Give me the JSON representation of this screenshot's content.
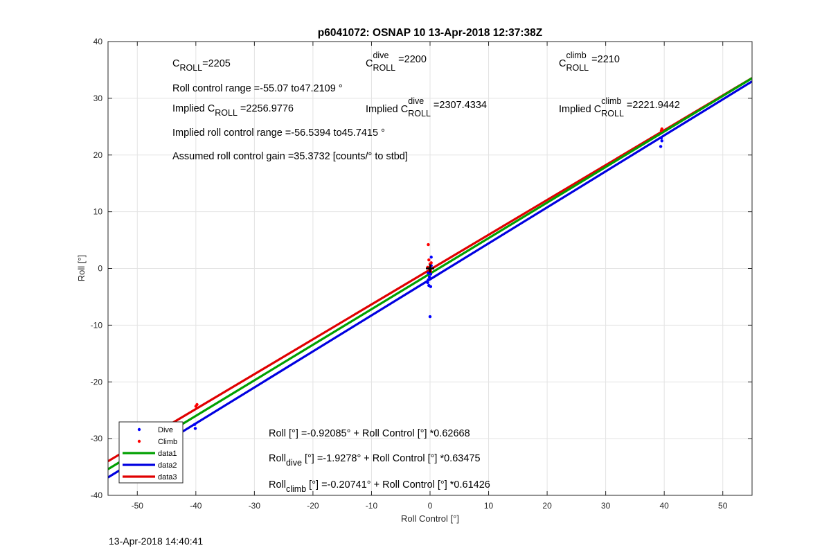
{
  "chart_data": {
    "type": "scatter",
    "title": "p6041072: OSNAP 10 13-Apr-2018 12:37:38Z",
    "xlabel": "Roll Control [°]",
    "ylabel": "Roll [°]",
    "xlim": [
      -55,
      55
    ],
    "ylim": [
      -40,
      40
    ],
    "xticks": [
      "-50",
      "-40",
      "-30",
      "-20",
      "-10",
      "0",
      "10",
      "20",
      "30",
      "40",
      "50"
    ],
    "yticks": [
      "-40",
      "-30",
      "-20",
      "-10",
      "0",
      "10",
      "20",
      "30",
      "40"
    ],
    "grid": true,
    "legend_location": "bottom-left",
    "series": [
      {
        "name": "Dive",
        "style": "points",
        "color": "#0000ff",
        "x": [
          -50.5,
          -40.2,
          -40.1,
          -0.3,
          -0.4,
          -0.2,
          -0.1,
          0.1,
          0.2,
          -0.3,
          0.0,
          0.1,
          0.2,
          39.5,
          39.4,
          39.6
        ],
        "y": [
          -28.0,
          -27.5,
          -28.2,
          -2.0,
          -2.5,
          -3.0,
          -1.5,
          -1.0,
          2.0,
          -0.8,
          -8.5,
          -3.2,
          0.5,
          23.0,
          21.5,
          22.5
        ]
      },
      {
        "name": "Climb",
        "style": "points",
        "color": "#ff0000",
        "x": [
          -40.0,
          -39.8,
          -0.3,
          -0.2,
          0.0,
          0.1,
          -0.4,
          0.2,
          39.6,
          39.5
        ],
        "y": [
          -24.3,
          -24.0,
          4.2,
          1.5,
          0.8,
          -0.5,
          0.2,
          1.0,
          24.6,
          24.3
        ]
      },
      {
        "name": "data1",
        "style": "line",
        "color": "#00a000",
        "x": [
          -55,
          55
        ],
        "y": [
          -35.388,
          33.547
        ]
      },
      {
        "name": "data2",
        "style": "line",
        "color": "#0000e0",
        "x": [
          -55,
          55
        ],
        "y": [
          -36.839,
          32.983
        ]
      },
      {
        "name": "data3",
        "style": "line",
        "color": "#e00000",
        "x": [
          -55,
          55
        ],
        "y": [
          -33.992,
          33.577
        ]
      }
    ],
    "marker": {
      "x": [
        0
      ],
      "y": [
        0
      ]
    },
    "annotations": [
      {
        "id": "croll",
        "parts": [
          {
            "t": "C"
          },
          {
            "t": "ROLL",
            "sub": true
          },
          {
            "t": "=2205"
          }
        ]
      },
      {
        "id": "croll_dive",
        "parts": [
          {
            "t": "C"
          },
          {
            "t": "ROLL",
            "sub": true
          },
          {
            "t": "dive",
            "sup": true
          },
          {
            "t": " =2200"
          }
        ]
      },
      {
        "id": "croll_climb",
        "parts": [
          {
            "t": "C"
          },
          {
            "t": "ROLL",
            "sub": true
          },
          {
            "t": "climb",
            "sup": true
          },
          {
            "t": " =2210"
          }
        ]
      },
      {
        "id": "range",
        "parts": [
          {
            "t": "Roll control range =-55.07 to47.2109 °"
          }
        ]
      },
      {
        "id": "implied",
        "parts": [
          {
            "t": "Implied C"
          },
          {
            "t": "ROLL",
            "sub": true
          },
          {
            "t": " =2256.9776"
          }
        ]
      },
      {
        "id": "implied_dive",
        "parts": [
          {
            "t": "Implied C"
          },
          {
            "t": "ROLL",
            "sub": true
          },
          {
            "t": "dive",
            "sup": true
          },
          {
            "t": " =2307.4334"
          }
        ]
      },
      {
        "id": "implied_climb",
        "parts": [
          {
            "t": "Implied C"
          },
          {
            "t": "ROLL",
            "sub": true
          },
          {
            "t": "climb",
            "sup": true
          },
          {
            "t": " =2221.9442"
          }
        ]
      },
      {
        "id": "implied_range",
        "parts": [
          {
            "t": "Implied roll control range =-56.5394 to45.7415 °"
          }
        ]
      },
      {
        "id": "gain",
        "parts": [
          {
            "t": "Assumed roll control gain =35.3732 [counts/° to stbd]"
          }
        ]
      },
      {
        "id": "fit_all",
        "parts": [
          {
            "t": "Roll [°] =-0.92085° + Roll Control [°] *0.62668"
          }
        ]
      },
      {
        "id": "fit_dive",
        "parts": [
          {
            "t": "Roll"
          },
          {
            "t": "dive",
            "sub": true
          },
          {
            "t": " [°] =-1.9278° + Roll Control [°] *0.63475"
          }
        ]
      },
      {
        "id": "fit_climb",
        "parts": [
          {
            "t": "Roll"
          },
          {
            "t": "climb",
            "sub": true
          },
          {
            "t": " [°] =-0.20741° + Roll Control [°] *0.61426"
          }
        ]
      }
    ]
  },
  "footer": {
    "timestamp": "13-Apr-2018 14:40:41"
  }
}
